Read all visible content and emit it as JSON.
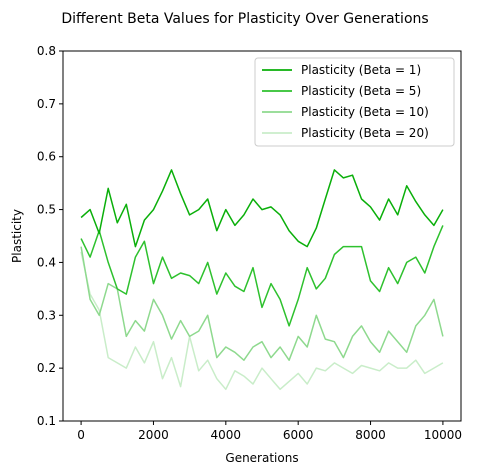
{
  "chart_data": {
    "type": "line",
    "title": "Different Beta Values for Plasticity Over Generations",
    "xlabel": "Generations",
    "ylabel": "Plasticity",
    "xlim": [
      -500,
      10500
    ],
    "ylim": [
      0.1,
      0.8
    ],
    "xticks": [
      0,
      2000,
      4000,
      6000,
      8000,
      10000
    ],
    "xtick_labels": [
      "0",
      "2000",
      "4000",
      "6000",
      "8000",
      "10000"
    ],
    "yticks": [
      0.1,
      0.2,
      0.3,
      0.4,
      0.5,
      0.6,
      0.7,
      0.8
    ],
    "ytick_labels": [
      "0.1",
      "0.2",
      "0.3",
      "0.4",
      "0.5",
      "0.6",
      "0.7",
      "0.8"
    ],
    "grid": false,
    "legend_position": "top-right",
    "x": [
      0,
      250,
      500,
      750,
      1000,
      1250,
      1500,
      1750,
      2000,
      2250,
      2500,
      2750,
      3000,
      3250,
      3500,
      3750,
      4000,
      4250,
      4500,
      4750,
      5000,
      5250,
      5500,
      5750,
      6000,
      6250,
      6500,
      6750,
      7000,
      7250,
      7500,
      7750,
      8000,
      8250,
      8500,
      8750,
      9000,
      9250,
      9500,
      9750,
      10000
    ],
    "series": [
      {
        "name": "Plasticity (Beta = 1)",
        "color": "#0aaf0a",
        "values": [
          0.485,
          0.5,
          0.455,
          0.54,
          0.475,
          0.51,
          0.43,
          0.48,
          0.5,
          0.535,
          0.575,
          0.53,
          0.49,
          0.5,
          0.52,
          0.46,
          0.5,
          0.47,
          0.49,
          0.52,
          0.5,
          0.505,
          0.49,
          0.46,
          0.44,
          0.43,
          0.465,
          0.52,
          0.575,
          0.56,
          0.565,
          0.52,
          0.505,
          0.48,
          0.52,
          0.49,
          0.545,
          0.515,
          0.49,
          0.47,
          0.5
        ]
      },
      {
        "name": "Plasticity (Beta = 5)",
        "color": "#2ec12e",
        "values": [
          0.445,
          0.41,
          0.46,
          0.4,
          0.35,
          0.34,
          0.41,
          0.44,
          0.36,
          0.41,
          0.37,
          0.38,
          0.375,
          0.36,
          0.4,
          0.34,
          0.38,
          0.355,
          0.345,
          0.39,
          0.315,
          0.36,
          0.33,
          0.28,
          0.33,
          0.39,
          0.35,
          0.37,
          0.415,
          0.43,
          0.43,
          0.43,
          0.365,
          0.345,
          0.39,
          0.36,
          0.4,
          0.41,
          0.38,
          0.43,
          0.47
        ]
      },
      {
        "name": "Plasticity (Beta = 10)",
        "color": "#8ed98e",
        "values": [
          0.43,
          0.33,
          0.3,
          0.36,
          0.35,
          0.26,
          0.29,
          0.27,
          0.33,
          0.3,
          0.255,
          0.29,
          0.26,
          0.27,
          0.3,
          0.22,
          0.24,
          0.23,
          0.215,
          0.24,
          0.25,
          0.22,
          0.24,
          0.215,
          0.26,
          0.24,
          0.3,
          0.255,
          0.25,
          0.22,
          0.26,
          0.28,
          0.25,
          0.23,
          0.27,
          0.25,
          0.23,
          0.28,
          0.3,
          0.33,
          0.26
        ]
      },
      {
        "name": "Plasticity (Beta = 20)",
        "color": "#c9edc9",
        "values": [
          0.42,
          0.34,
          0.31,
          0.22,
          0.21,
          0.2,
          0.24,
          0.21,
          0.25,
          0.18,
          0.22,
          0.165,
          0.26,
          0.195,
          0.215,
          0.18,
          0.16,
          0.195,
          0.185,
          0.17,
          0.2,
          0.18,
          0.16,
          0.175,
          0.19,
          0.17,
          0.2,
          0.195,
          0.21,
          0.2,
          0.19,
          0.205,
          0.2,
          0.195,
          0.21,
          0.2,
          0.2,
          0.215,
          0.19,
          0.2,
          0.21
        ]
      }
    ]
  }
}
